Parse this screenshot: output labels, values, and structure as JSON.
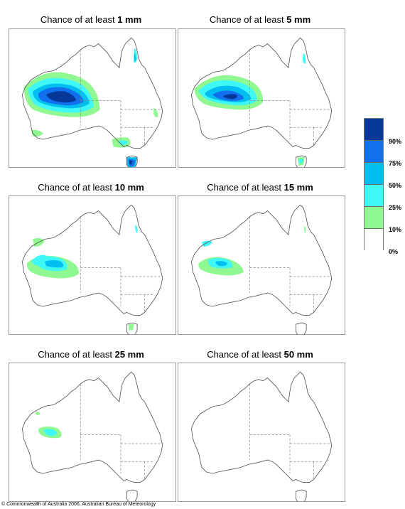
{
  "panels": [
    {
      "prefix": "Chance of at least ",
      "amount": "1 mm"
    },
    {
      "prefix": "Chance of at least ",
      "amount": "5 mm"
    },
    {
      "prefix": "Chance of at least ",
      "amount": "10 mm"
    },
    {
      "prefix": "Chance of at least ",
      "amount": "15 mm"
    },
    {
      "prefix": "Chance of at least ",
      "amount": "25 mm"
    },
    {
      "prefix": "Chance of at least ",
      "amount": "50 mm"
    }
  ],
  "legend": {
    "levels": [
      {
        "label": "90%",
        "color": "#06389a"
      },
      {
        "label": "75%",
        "color": "#1170ee"
      },
      {
        "label": "50%",
        "color": "#00bff0"
      },
      {
        "label": "25%",
        "color": "#3ff7f7"
      },
      {
        "label": "10%",
        "color": "#90f890"
      },
      {
        "label": "0%",
        "color": "#ffffff"
      }
    ]
  },
  "colors": {
    "p10": "#90f890",
    "p25": "#3ff7f7",
    "p50": "#00bff0",
    "p75": "#1170ee",
    "p90": "#06389a",
    "outline": "#555555"
  },
  "copyright": "© Commonwealth of Australia 2006, Australian Bureau of Meteorology"
}
